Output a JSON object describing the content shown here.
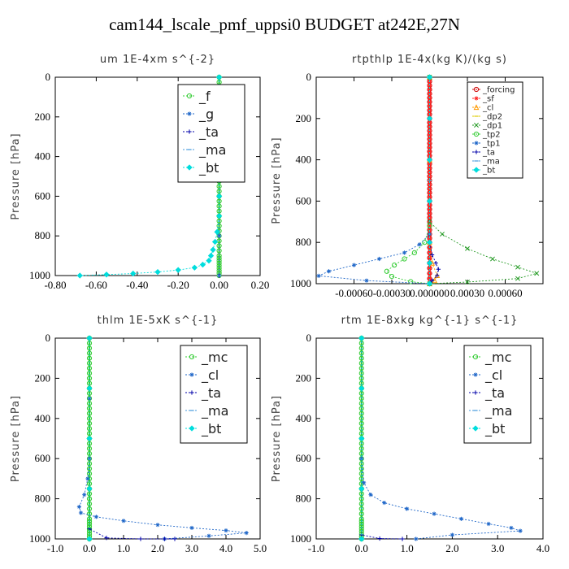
{
  "title": "cam144_lscale_pmf_uppsi0  BUDGET at242E,27N",
  "chart_data": [
    {
      "type": "line",
      "title": "um   1E-4xm s^{-2}",
      "ylabel": "Pressure [hPa]",
      "xlim": [
        -0.8,
        0.2
      ],
      "ylim": [
        1000,
        0
      ],
      "xticks": [
        "-0.80",
        "-0.60",
        "-0.40",
        "-0.20",
        "0.00",
        "0.20"
      ],
      "xtick_values": [
        -0.8,
        -0.6,
        -0.4,
        -0.2,
        0.0,
        0.2
      ],
      "yticks": [
        "0",
        "200",
        "400",
        "600",
        "800",
        "1000"
      ],
      "ytick_values": [
        0,
        200,
        400,
        600,
        800,
        1000
      ],
      "legend_position": "top-right",
      "legend_large": true,
      "series": [
        {
          "name": "_f",
          "color": "#33cc33",
          "marker": "circle",
          "x": [
            0,
            0,
            0,
            0,
            0,
            0,
            0,
            0,
            0,
            0,
            0,
            0
          ],
          "y": [
            0,
            100,
            200,
            300,
            400,
            500,
            600,
            700,
            800,
            900,
            950,
            1000
          ]
        },
        {
          "name": "_g",
          "color": "#1e66c8",
          "marker": "star",
          "x": [
            0,
            0,
            0,
            0,
            0,
            0
          ],
          "y": [
            0,
            200,
            400,
            600,
            800,
            1000
          ]
        },
        {
          "name": "_ta",
          "color": "#0000aa",
          "marker": "plus",
          "x": [
            0,
            0,
            0,
            0,
            0,
            0
          ],
          "y": [
            0,
            200,
            400,
            600,
            800,
            1000
          ]
        },
        {
          "name": "_ma",
          "color": "#4499dd",
          "marker": "dash",
          "x": [
            0,
            0,
            0,
            0,
            0,
            0
          ],
          "y": [
            0,
            200,
            400,
            600,
            800,
            1000
          ]
        },
        {
          "name": "_bt",
          "color": "#00dddd",
          "marker": "diamond",
          "x": [
            0.0,
            0.0,
            0.0,
            0.0,
            0.0,
            -0.01,
            -0.02,
            -0.03,
            -0.04,
            -0.05,
            -0.08,
            -0.12,
            -0.2,
            -0.3,
            -0.42,
            -0.55,
            -0.68
          ],
          "y": [
            0,
            200,
            400,
            600,
            700,
            780,
            830,
            870,
            900,
            925,
            945,
            960,
            972,
            982,
            990,
            995,
            1000
          ]
        }
      ]
    },
    {
      "type": "line",
      "title": "rtpthlp   1E-4x(kg K)/(kg s)",
      "ylabel": "Pressure [hPa]",
      "xlim": [
        -0.0009,
        0.0009
      ],
      "ylim": [
        1000,
        0
      ],
      "xticks": [
        "-0.00060",
        "-0.00030",
        "0.000000",
        "0.00030",
        "0.00060"
      ],
      "xtick_values": [
        -0.0006,
        -0.0003,
        0.0,
        0.0003,
        0.0006
      ],
      "yticks": [
        "0",
        "200",
        "400",
        "600",
        "800",
        "1000"
      ],
      "ytick_values": [
        0,
        200,
        400,
        600,
        800,
        1000
      ],
      "legend_position": "top-right",
      "legend_large": false,
      "series": [
        {
          "name": "_forcing",
          "color": "#cc0000",
          "marker": "circle",
          "x": [
            0,
            0,
            0,
            0,
            0,
            0,
            0,
            0,
            0,
            0,
            0,
            0,
            0
          ],
          "y": [
            0,
            80,
            160,
            240,
            320,
            400,
            480,
            560,
            640,
            720,
            800,
            900,
            1000
          ]
        },
        {
          "name": "_sf",
          "color": "#ff2222",
          "marker": "star",
          "x": [
            0,
            0,
            0,
            0,
            0,
            0,
            0,
            0,
            0,
            0,
            0,
            0,
            0
          ],
          "y": [
            0,
            80,
            160,
            240,
            320,
            400,
            480,
            560,
            640,
            720,
            800,
            900,
            1000
          ]
        },
        {
          "name": "_cl",
          "color": "#ff9900",
          "marker": "triangle",
          "x": [
            0,
            0,
            0,
            2e-05,
            6e-05,
            4e-05,
            0
          ],
          "y": [
            0,
            400,
            800,
            900,
            960,
            985,
            1000
          ]
        },
        {
          "name": "_dp2",
          "color": "#ddcc00",
          "marker": "dash",
          "x": [
            0,
            0,
            0,
            0
          ],
          "y": [
            0,
            500,
            900,
            1000
          ]
        },
        {
          "name": "_dp1",
          "color": "#229922",
          "marker": "x",
          "x": [
            0,
            0,
            0.0001,
            0.0003,
            0.0005,
            0.0007,
            0.00085,
            0.0007,
            0.0003,
            0
          ],
          "y": [
            0,
            700,
            760,
            830,
            880,
            920,
            950,
            975,
            992,
            1000
          ]
        },
        {
          "name": "_tp2",
          "color": "#33cc33",
          "marker": "circle",
          "x": [
            0,
            0,
            -4e-05,
            -0.00012,
            -0.0002,
            -0.00028,
            -0.00034,
            -0.0003,
            -0.00015,
            0
          ],
          "y": [
            0,
            720,
            800,
            850,
            880,
            910,
            940,
            965,
            990,
            1000
          ]
        },
        {
          "name": "_tp1",
          "color": "#1e66c8",
          "marker": "star",
          "x": [
            0,
            0,
            -8e-05,
            -0.0002,
            -0.0004,
            -0.0006,
            -0.0008,
            -0.00088,
            -0.0005,
            0
          ],
          "y": [
            0,
            760,
            810,
            850,
            880,
            910,
            940,
            962,
            985,
            1000
          ]
        },
        {
          "name": "_ta",
          "color": "#0000aa",
          "marker": "plus",
          "x": [
            0,
            0,
            2e-05,
            5e-05,
            7e-05,
            6e-05,
            2e-05,
            0
          ],
          "y": [
            0,
            800,
            860,
            900,
            930,
            960,
            985,
            1000
          ]
        },
        {
          "name": "_ma",
          "color": "#4499dd",
          "marker": "dash",
          "x": [
            0,
            0,
            0,
            0
          ],
          "y": [
            0,
            500,
            900,
            1000
          ]
        },
        {
          "name": "_bt",
          "color": "#00dddd",
          "marker": "diamond",
          "x": [
            0,
            0,
            0,
            0,
            0,
            0,
            0
          ],
          "y": [
            0,
            200,
            400,
            600,
            800,
            900,
            1000
          ]
        }
      ]
    },
    {
      "type": "line",
      "title": "thlm   1E-5xK s^{-1}",
      "ylabel": "Pressure [hPa]",
      "xlim": [
        -1.0,
        5.0
      ],
      "ylim": [
        1000,
        0
      ],
      "xticks": [
        "-1.0",
        "0.0",
        "1.0",
        "2.0",
        "3.0",
        "4.0",
        "5.0"
      ],
      "xtick_values": [
        -1,
        0,
        1,
        2,
        3,
        4,
        5
      ],
      "yticks": [
        "0",
        "200",
        "400",
        "600",
        "800",
        "1000"
      ],
      "ytick_values": [
        0,
        200,
        400,
        600,
        800,
        1000
      ],
      "legend_position": "top-right",
      "legend_large": true,
      "series": [
        {
          "name": "_mc",
          "color": "#33cc33",
          "marker": "circle",
          "x": [
            0,
            0,
            0,
            0,
            0,
            0,
            0,
            0,
            0,
            0,
            0,
            0
          ],
          "y": [
            0,
            100,
            200,
            300,
            400,
            500,
            600,
            700,
            800,
            900,
            950,
            1000
          ]
        },
        {
          "name": "_cl",
          "color": "#1e66c8",
          "marker": "star",
          "x": [
            0,
            0,
            0,
            -0.05,
            -0.15,
            -0.3,
            -0.25,
            0.2,
            1.0,
            2.0,
            3.0,
            4.0,
            4.6,
            3.5,
            2.2
          ],
          "y": [
            0,
            300,
            600,
            700,
            780,
            840,
            870,
            890,
            910,
            930,
            945,
            958,
            970,
            985,
            1000
          ]
        },
        {
          "name": "_ta",
          "color": "#0000aa",
          "marker": "plus",
          "x": [
            0,
            0,
            0.5,
            1.5,
            2.5,
            2.2
          ],
          "y": [
            0,
            950,
            995,
            1000,
            1000,
            1000
          ]
        },
        {
          "name": "_ma",
          "color": "#4499dd",
          "marker": "dash",
          "x": [
            0,
            0,
            0
          ],
          "y": [
            0,
            500,
            1000
          ]
        },
        {
          "name": "_bt",
          "color": "#00dddd",
          "marker": "diamond",
          "x": [
            0,
            0,
            0,
            0,
            0
          ],
          "y": [
            0,
            250,
            500,
            750,
            1000
          ]
        }
      ]
    },
    {
      "type": "line",
      "title": "rtm   1E-8xkg kg^{-1} s^{-1}",
      "ylabel": "Pressure [hPa]",
      "xlim": [
        -1.0,
        4.0
      ],
      "ylim": [
        1000,
        0
      ],
      "xticks": [
        "-1.0",
        "0.0",
        "1.0",
        "2.0",
        "3.0",
        "4.0"
      ],
      "xtick_values": [
        -1,
        0,
        1,
        2,
        3,
        4
      ],
      "yticks": [
        "0",
        "200",
        "400",
        "600",
        "800",
        "1000"
      ],
      "ytick_values": [
        0,
        200,
        400,
        600,
        800,
        1000
      ],
      "legend_position": "top-right",
      "legend_large": true,
      "series": [
        {
          "name": "_mc",
          "color": "#33cc33",
          "marker": "circle",
          "x": [
            0,
            0,
            0,
            0,
            0,
            0,
            0,
            0,
            0,
            0,
            0,
            0
          ],
          "y": [
            0,
            100,
            200,
            300,
            400,
            500,
            600,
            700,
            800,
            900,
            950,
            1000
          ]
        },
        {
          "name": "_cl",
          "color": "#1e66c8",
          "marker": "star",
          "x": [
            0,
            0,
            0.05,
            0.2,
            0.5,
            1.0,
            1.6,
            2.2,
            2.8,
            3.3,
            3.5,
            2.0,
            1.2
          ],
          "y": [
            0,
            600,
            720,
            780,
            820,
            850,
            875,
            900,
            925,
            945,
            960,
            980,
            1000
          ]
        },
        {
          "name": "_ta",
          "color": "#0000aa",
          "marker": "plus",
          "x": [
            0,
            0,
            0.4,
            0.9
          ],
          "y": [
            0,
            980,
            998,
            1000
          ]
        },
        {
          "name": "_ma",
          "color": "#4499dd",
          "marker": "dash",
          "x": [
            0,
            0,
            0
          ],
          "y": [
            0,
            500,
            1000
          ]
        },
        {
          "name": "_bt",
          "color": "#00dddd",
          "marker": "diamond",
          "x": [
            0,
            0,
            0,
            0,
            0
          ],
          "y": [
            0,
            250,
            500,
            750,
            1000
          ]
        }
      ]
    }
  ]
}
